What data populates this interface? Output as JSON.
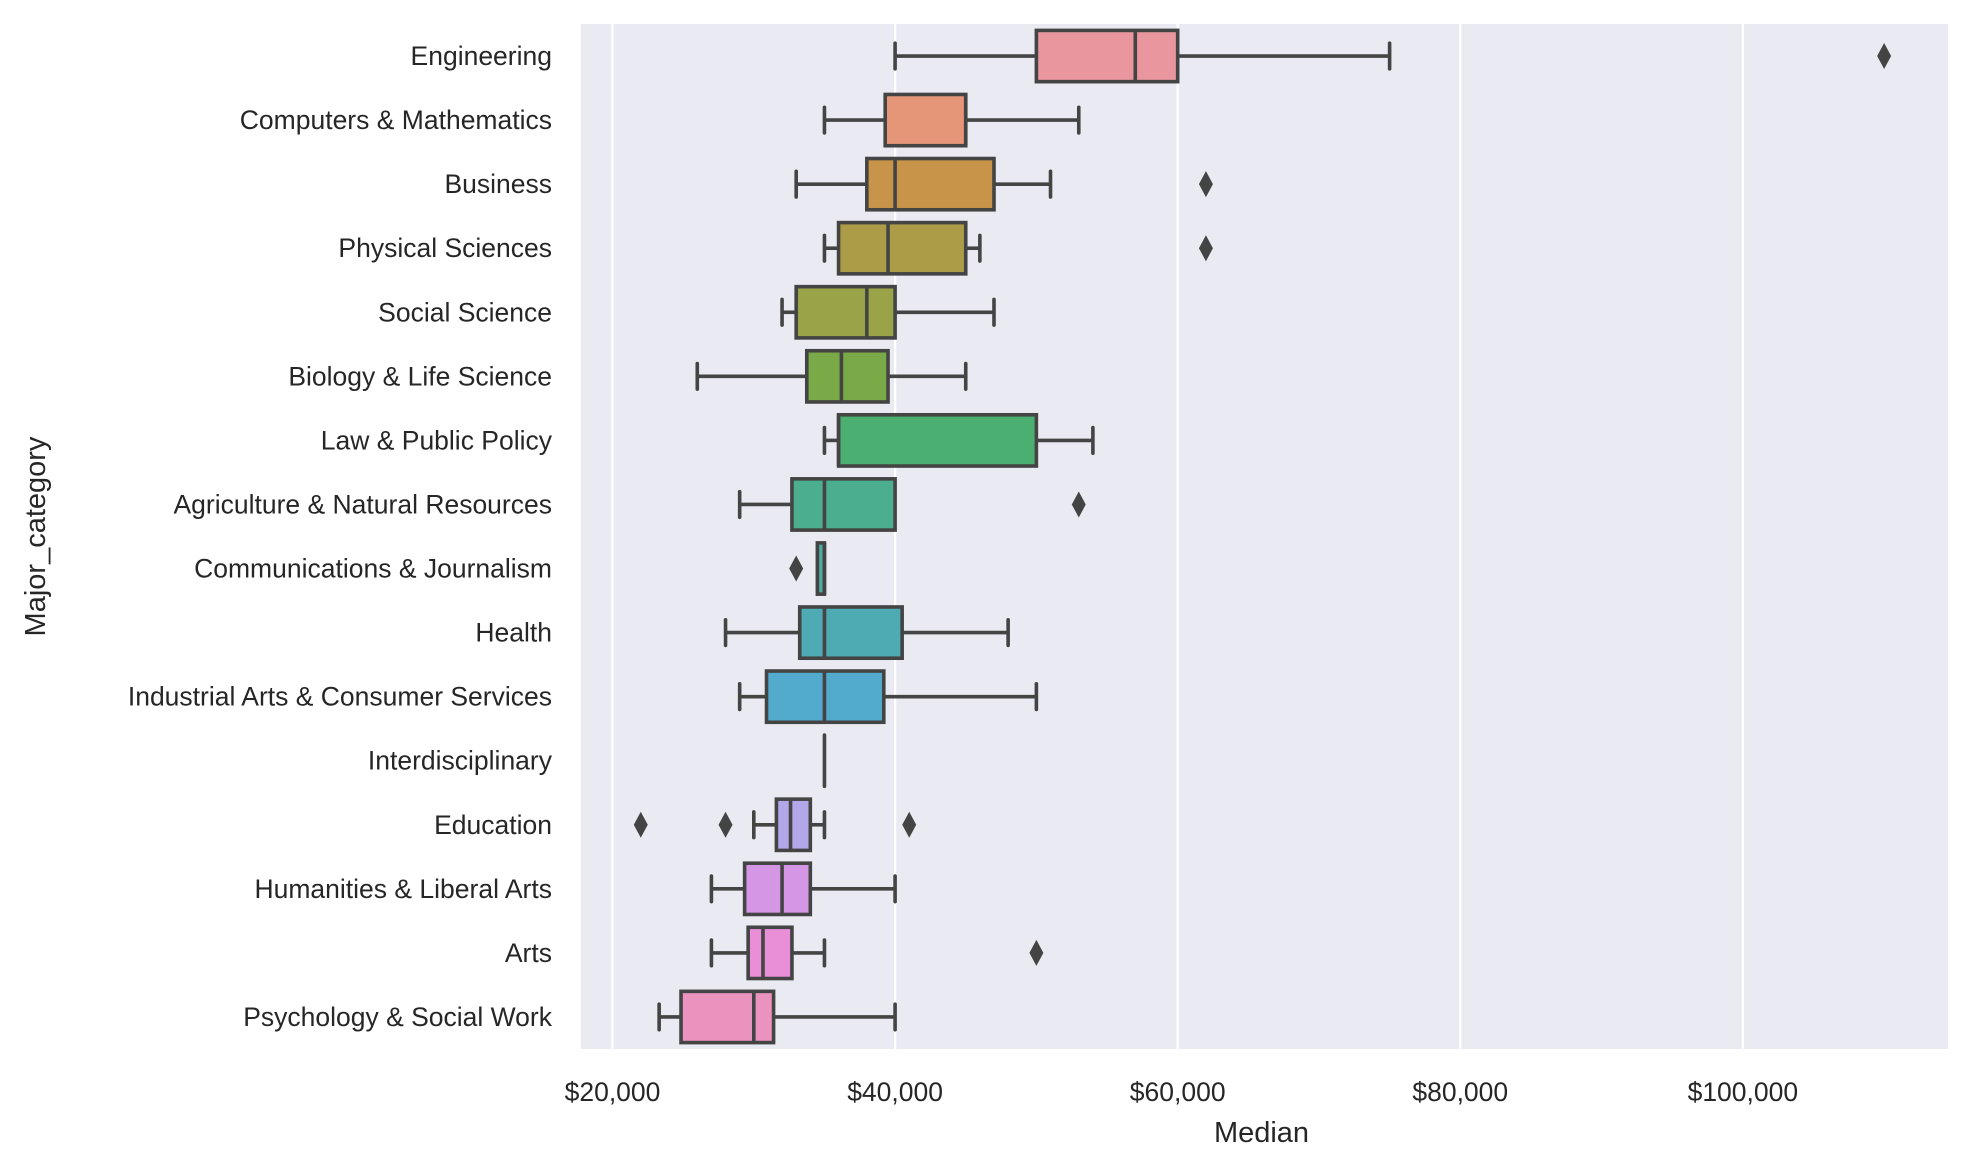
{
  "chart_data": {
    "type": "boxplot",
    "orientation": "horizontal",
    "title": "",
    "xlabel": "Median",
    "ylabel": "Major_category",
    "xlim": [
      17770,
      114520
    ],
    "x_ticks": [
      20000,
      40000,
      60000,
      80000,
      100000
    ],
    "x_tick_labels": [
      "$20,000",
      "$40,000",
      "$60,000",
      "$80,000",
      "$100,000"
    ],
    "grid": "vertical",
    "background": "#EAEAF2",
    "line_color": "#444444",
    "categories": [
      {
        "name": "Engineering",
        "color": "#E9969F",
        "whisker_low": 40000,
        "q1": 50000,
        "median": 57000,
        "q3": 60000,
        "whisker_high": 75000,
        "outliers": [
          110000
        ]
      },
      {
        "name": "Computers & Mathematics",
        "color": "#E69678",
        "whisker_low": 35000,
        "q1": 39300,
        "median": 45000,
        "q3": 45000,
        "whisker_high": 53000,
        "outliers": []
      },
      {
        "name": "Business",
        "color": "#C8944A",
        "whisker_low": 33000,
        "q1": 38000,
        "median": 40000,
        "q3": 47000,
        "whisker_high": 51000,
        "outliers": [
          62000
        ]
      },
      {
        "name": "Physical Sciences",
        "color": "#AD9C47",
        "whisker_low": 35000,
        "q1": 36000,
        "median": 39500,
        "q3": 45000,
        "whisker_high": 46000,
        "outliers": [
          62000
        ]
      },
      {
        "name": "Social Science",
        "color": "#9AA348",
        "whisker_low": 32000,
        "q1": 33000,
        "median": 38000,
        "q3": 40000,
        "whisker_high": 47000,
        "outliers": []
      },
      {
        "name": "Biology & Life Science",
        "color": "#7AA948",
        "whisker_low": 26000,
        "q1": 33750,
        "median": 36200,
        "q3": 39500,
        "whisker_high": 45000,
        "outliers": []
      },
      {
        "name": "Law & Public Policy",
        "color": "#4AAF71",
        "whisker_low": 35000,
        "q1": 36000,
        "median": 36000,
        "q3": 50000,
        "whisker_high": 54000,
        "outliers": []
      },
      {
        "name": "Agriculture & Natural Resources",
        "color": "#4AAE8F",
        "whisker_low": 29000,
        "q1": 32700,
        "median": 35000,
        "q3": 40000,
        "whisker_high": 40000,
        "outliers": [
          53000
        ]
      },
      {
        "name": "Communications & Journalism",
        "color": "#4BAD9E",
        "whisker_low": 34500,
        "q1": 34500,
        "median": 35000,
        "q3": 35000,
        "whisker_high": 35000,
        "outliers": [
          33000
        ]
      },
      {
        "name": "Health",
        "color": "#4EAAB3",
        "whisker_low": 28000,
        "q1": 33250,
        "median": 35000,
        "q3": 40500,
        "whisker_high": 48000,
        "outliers": []
      },
      {
        "name": "Industrial Arts & Consumer Services",
        "color": "#52ABCD",
        "whisker_low": 29000,
        "q1": 30900,
        "median": 35000,
        "q3": 39200,
        "whisker_high": 50000,
        "outliers": []
      },
      {
        "name": "Interdisciplinary",
        "color": "#8DA9E6",
        "whisker_low": 35000,
        "q1": 35000,
        "median": 35000,
        "q3": 35000,
        "whisker_high": 35000,
        "outliers": []
      },
      {
        "name": "Education",
        "color": "#B4A7E9",
        "whisker_low": 30000,
        "q1": 31600,
        "median": 32600,
        "q3": 34000,
        "whisker_high": 35000,
        "outliers": [
          22000,
          28000,
          41000
        ]
      },
      {
        "name": "Humanities & Liberal Arts",
        "color": "#D596E6",
        "whisker_low": 27000,
        "q1": 29350,
        "median": 32000,
        "q3": 34000,
        "whisker_high": 40000,
        "outliers": []
      },
      {
        "name": "Arts",
        "color": "#E88FD8",
        "whisker_low": 27000,
        "q1": 29600,
        "median": 30650,
        "q3": 32700,
        "whisker_high": 35000,
        "outliers": [
          50000
        ]
      },
      {
        "name": "Psychology & Social Work",
        "color": "#E993BE",
        "whisker_low": 23300,
        "q1": 24850,
        "median": 30000,
        "q3": 31400,
        "whisker_high": 40000,
        "outliers": []
      }
    ]
  }
}
